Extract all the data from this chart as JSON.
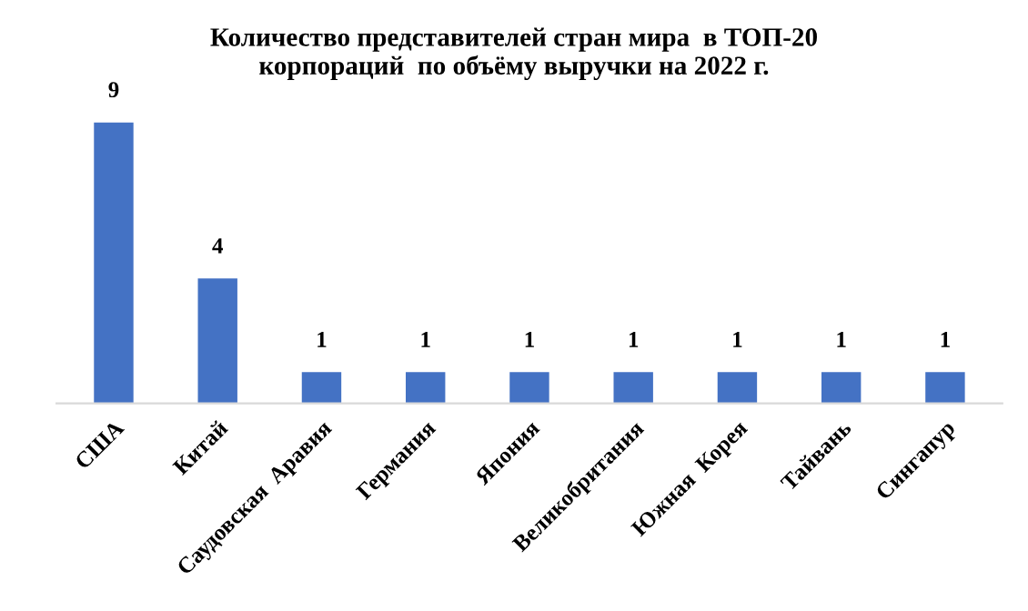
{
  "chart_data": {
    "type": "bar",
    "title": "Количество представителей стран мира  в ТОП-20\nкорпораций  по объёму выручки на 2022 г.",
    "categories": [
      "США",
      "Китай",
      "Саудовская  Аравия",
      "Германия",
      "Япония",
      "Великобритания",
      "Южная  Корея",
      "Тайвань",
      "Сингапур"
    ],
    "values": [
      9,
      4,
      1,
      1,
      1,
      1,
      1,
      1,
      1
    ],
    "color": "#4472c4",
    "data_labels": true,
    "grid": false,
    "legend": false
  }
}
